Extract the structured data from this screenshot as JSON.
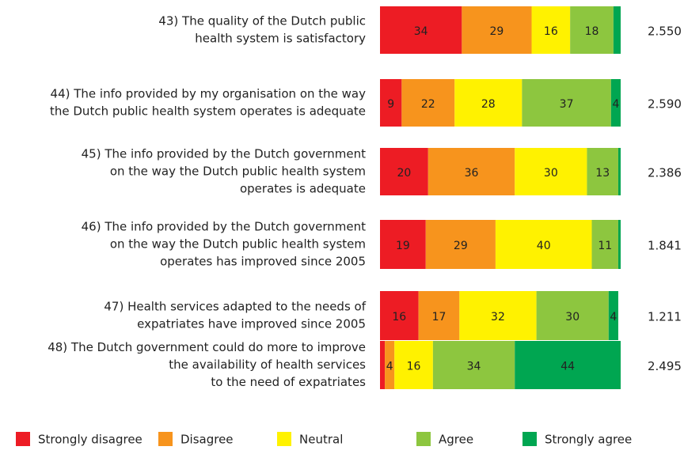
{
  "chart_data": {
    "type": "stacked-bar",
    "categories": [
      [
        "43) The quality of the Dutch public",
        "health system is satisfactory"
      ],
      [
        "44) The info provided by my organisation on the way",
        "the Dutch public health system operates is adequate"
      ],
      [
        "45)  The info provided by the Dutch government",
        "on the way the Dutch public health system",
        "operates is adequate"
      ],
      [
        "46) The info provided by the Dutch government",
        "on the way the Dutch public health system",
        "operates has improved since 2005"
      ],
      [
        "47) Health services adapted to the needs of",
        "expatriates have improved since 2005"
      ],
      [
        "48) The Dutch government could do more to improve",
        "the availability of health services",
        "to the need of expatriates"
      ]
    ],
    "xlim": [
      0,
      100
    ],
    "series": [
      {
        "name": "Strongly disagree",
        "color": "#ed1c24",
        "values": [
          34,
          9,
          20,
          19,
          16,
          2
        ]
      },
      {
        "name": "Disagree",
        "color": "#f7941d",
        "values": [
          29,
          22,
          36,
          29,
          17,
          4
        ]
      },
      {
        "name": "Neutral",
        "color": "#fff200",
        "values": [
          16,
          28,
          30,
          40,
          32,
          16
        ]
      },
      {
        "name": "Agree",
        "color": "#8dc63f",
        "values": [
          18,
          37,
          13,
          11,
          30,
          34
        ]
      },
      {
        "name": "Strongly agree",
        "color": "#00a651",
        "values": [
          3,
          4,
          1,
          1,
          4,
          44
        ]
      }
    ],
    "scores": [
      "2.550",
      "2.590",
      "2.386",
      "1.841",
      "1.211",
      "2.495"
    ],
    "legend": "bottom"
  }
}
